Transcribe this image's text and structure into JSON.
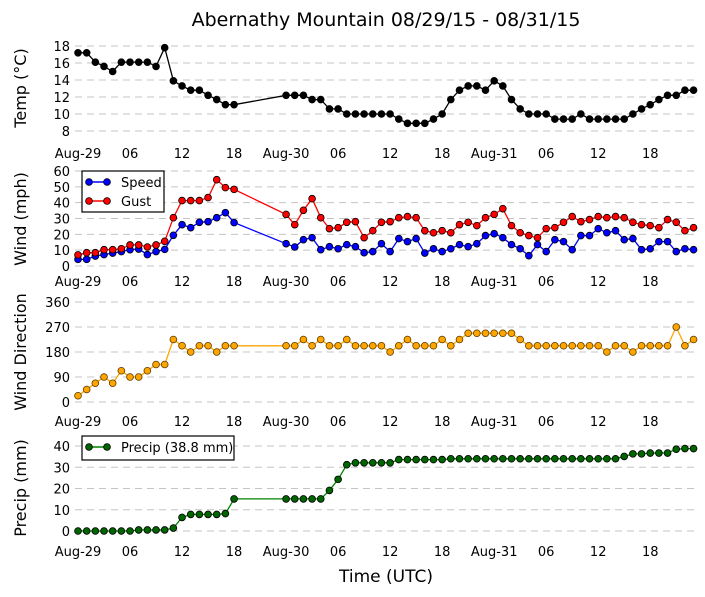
{
  "chart_data": [
    {
      "type": "line",
      "title": "Abernathy Mountain 08/29/15 - 08/31/15",
      "xlabel": "Time (UTC)",
      "x_unit": "hours since Aug-29 00:00 UTC",
      "x_ticks": [
        0,
        6,
        12,
        18,
        24,
        30,
        36,
        42,
        48,
        54,
        60,
        66
      ],
      "x_tick_labels": [
        "Aug-29",
        "06",
        "12",
        "18",
        "Aug-30",
        "06",
        "12",
        "18",
        "Aug-31",
        "06",
        "12",
        "18"
      ],
      "x_hours": [
        0,
        1,
        2,
        3,
        4,
        5,
        6,
        7,
        8,
        9,
        10,
        11,
        12,
        13,
        14,
        15,
        16,
        17,
        18,
        24,
        25,
        26,
        27,
        28,
        29,
        30,
        31,
        32,
        33,
        34,
        35,
        36,
        37,
        38,
        39,
        40,
        41,
        42,
        43,
        44,
        45,
        46,
        47,
        48,
        49,
        50,
        51,
        52,
        53,
        54,
        55,
        56,
        57,
        58,
        59,
        60,
        61,
        62,
        63,
        64,
        65,
        66,
        67,
        68,
        69,
        70,
        71
      ],
      "panels": [
        {
          "id": "temp",
          "ylabel": "Temp (°C)",
          "yticks": [
            8,
            10,
            12,
            14,
            16,
            18
          ],
          "ylim": [
            7.5,
            18.5
          ],
          "grid": true,
          "series": [
            {
              "name": "Temp",
              "color": "#000000",
              "marker_color": "#000000",
              "values": [
                17.2,
                17.2,
                16.1,
                15.6,
                15.0,
                16.1,
                16.1,
                16.1,
                16.1,
                15.6,
                17.8,
                13.9,
                13.3,
                12.8,
                12.8,
                12.2,
                11.7,
                11.1,
                11.1,
                12.2,
                12.2,
                12.2,
                11.7,
                11.7,
                10.6,
                10.6,
                10.0,
                10.0,
                10.0,
                10.0,
                10.0,
                10.0,
                9.4,
                8.9,
                8.9,
                8.9,
                9.4,
                10.0,
                11.7,
                12.8,
                13.3,
                13.3,
                12.8,
                13.9,
                13.3,
                11.7,
                10.6,
                10.0,
                10.0,
                10.0,
                9.4,
                9.4,
                9.4,
                10.0,
                9.4,
                9.4,
                9.4,
                9.4,
                9.4,
                10.0,
                10.6,
                11.1,
                11.7,
                12.2,
                12.2,
                12.8,
                12.8
              ]
            }
          ]
        },
        {
          "id": "wind",
          "ylabel": "Wind (mph)",
          "yticks": [
            0,
            10,
            20,
            30,
            40,
            50,
            60
          ],
          "ylim": [
            0,
            60
          ],
          "grid": true,
          "legend": "top-left",
          "series": [
            {
              "name": "Speed",
              "color": "#0000ff",
              "marker_color": "#0000ff",
              "values": [
                4.2,
                4.2,
                6.3,
                7.2,
                8.2,
                9.1,
                10.3,
                10.7,
                7.2,
                9.1,
                10.5,
                19.4,
                26.1,
                24.2,
                27.6,
                28.0,
                30.5,
                33.7,
                27.4,
                14.1,
                12.0,
                16.6,
                17.9,
                10.3,
                12.2,
                10.9,
                13.5,
                12.2,
                8.4,
                9.1,
                14.1,
                9.1,
                17.3,
                15.4,
                17.3,
                8.2,
                10.9,
                9.1,
                10.9,
                13.5,
                12.2,
                14.1,
                19.2,
                20.4,
                17.9,
                13.5,
                10.9,
                6.5,
                13.5,
                9.1,
                16.6,
                15.4,
                10.3,
                19.2,
                19.2,
                23.6,
                21.0,
                22.3,
                16.6,
                17.3,
                10.3,
                10.9,
                15.4,
                15.4,
                9.1,
                10.9,
                10.3
              ]
            },
            {
              "name": "Gust",
              "color": "#ff0000",
              "marker_color": "#ff0000",
              "values": [
                7.0,
                8.4,
                8.4,
                10.3,
                10.3,
                10.9,
                13.3,
                13.3,
                12.0,
                13.3,
                15.6,
                30.5,
                41.3,
                41.3,
                41.3,
                43.2,
                54.5,
                49.5,
                48.4,
                32.6,
                26.1,
                35.2,
                42.5,
                30.5,
                23.6,
                24.2,
                27.6,
                28.0,
                17.9,
                22.3,
                27.6,
                28.0,
                30.5,
                31.2,
                30.5,
                22.3,
                21.0,
                22.3,
                21.0,
                26.1,
                27.6,
                25.5,
                30.5,
                32.6,
                36.2,
                25.5,
                21.0,
                19.2,
                17.9,
                23.6,
                24.2,
                27.6,
                31.2,
                28.0,
                29.3,
                31.2,
                30.5,
                31.2,
                30.5,
                27.6,
                26.1,
                25.5,
                24.2,
                29.3,
                27.6,
                22.3,
                24.2
              ]
            }
          ]
        },
        {
          "id": "dir",
          "ylabel": "Wind Direction",
          "yticks": [
            0,
            90,
            180,
            270,
            360
          ],
          "ylim": [
            0,
            360
          ],
          "grid": true,
          "series": [
            {
              "name": "Direction",
              "color": "#ffa500",
              "marker_color": "#ffa500",
              "values": [
                22.5,
                45,
                67.5,
                90,
                67.5,
                112.5,
                90,
                90,
                112.5,
                135,
                135,
                225,
                202.5,
                180,
                202.5,
                202.5,
                180,
                202.5,
                202.5,
                202.5,
                202.5,
                225,
                202.5,
                225,
                202.5,
                202.5,
                225,
                202.5,
                202.5,
                202.5,
                202.5,
                180,
                202.5,
                225,
                202.5,
                202.5,
                202.5,
                225,
                202.5,
                225,
                247.5,
                247.5,
                247.5,
                247.5,
                247.5,
                247.5,
                225,
                202.5,
                202.5,
                202.5,
                202.5,
                202.5,
                202.5,
                202.5,
                202.5,
                202.5,
                180,
                202.5,
                202.5,
                180,
                202.5,
                202.5,
                202.5,
                202.5,
                270,
                202.5,
                225
              ]
            }
          ]
        },
        {
          "id": "precip",
          "ylabel": "Precip (mm)",
          "yticks": [
            0,
            10,
            20,
            30,
            40
          ],
          "ylim": [
            0,
            40
          ],
          "grid": true,
          "legend": "top-left",
          "series": [
            {
              "name": "Precip (38.8 mm)",
              "color": "#008000",
              "marker_color": "#006400",
              "values": [
                0,
                0,
                0,
                0,
                0,
                0,
                0,
                0.5,
                0.5,
                0.5,
                0.5,
                1.4,
                6.4,
                7.8,
                7.8,
                7.8,
                7.8,
                8.2,
                15.1,
                15.1,
                15.1,
                15.1,
                15.1,
                15.1,
                19.1,
                24.3,
                31.2,
                32.1,
                32.1,
                32.1,
                32.1,
                32.1,
                33.6,
                33.6,
                33.6,
                33.6,
                33.6,
                33.6,
                34.0,
                34.0,
                34.0,
                34.0,
                34.0,
                34.0,
                34.0,
                34.0,
                34.0,
                34.0,
                34.0,
                34.0,
                34.0,
                34.0,
                34.0,
                34.0,
                34.0,
                34.0,
                34.0,
                34.0,
                35.1,
                36.3,
                36.3,
                36.7,
                36.7,
                36.7,
                38.5,
                38.8,
                38.8
              ]
            }
          ]
        }
      ]
    }
  ]
}
